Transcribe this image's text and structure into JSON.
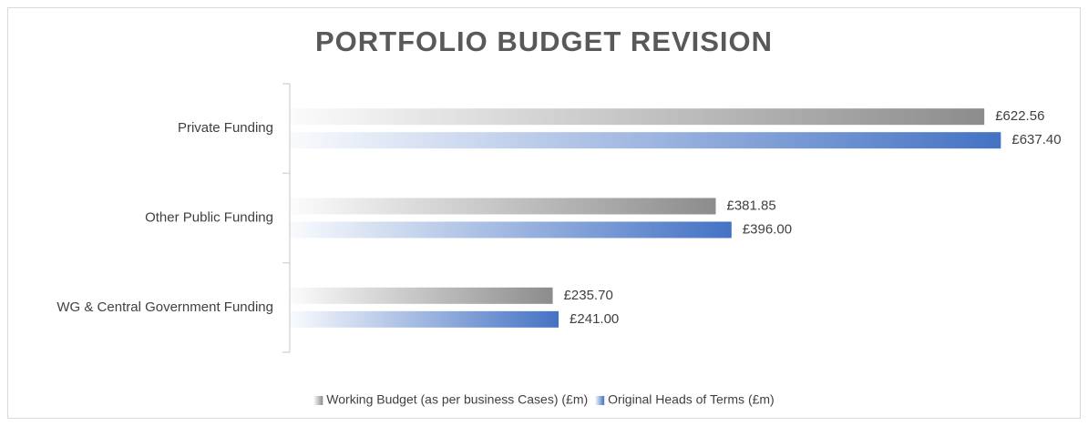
{
  "chart_data": {
    "type": "bar",
    "orientation": "horizontal",
    "title": "PORTFOLIO BUDGET REVISION",
    "categories": [
      "Private Funding",
      "Other Public Funding",
      "WG & Central Government Funding"
    ],
    "series": [
      {
        "name": "Working Budget (as per business Cases) (£m)",
        "color": "#8c8c8c",
        "values": [
          622.56,
          381.85,
          235.7
        ],
        "value_labels": [
          "£622.56",
          "£381.85",
          "£235.70"
        ]
      },
      {
        "name": "Original Heads of Terms (£m)",
        "color": "#4472c4",
        "values": [
          637.4,
          396.0,
          241.0
        ],
        "value_labels": [
          "£637.40",
          "£396.00",
          "£241.00"
        ]
      }
    ],
    "xlim": [
      0,
      700
    ],
    "legend": "bottom",
    "grid": false
  }
}
